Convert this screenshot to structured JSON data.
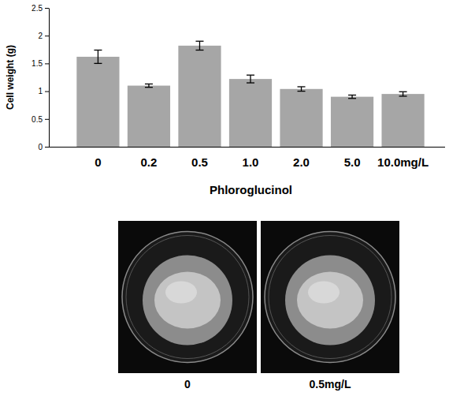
{
  "chart_data": {
    "type": "bar",
    "x_label": "Phloroglucinol",
    "y_label": "Cell weight (g)",
    "categories": [
      "0",
      "0.2",
      "0.5",
      "1.0",
      "2.0",
      "5.0",
      "10.0mg/L"
    ],
    "values": [
      1.62,
      1.1,
      1.82,
      1.22,
      1.04,
      0.9,
      0.95
    ],
    "errors": [
      0.12,
      0.03,
      0.08,
      0.07,
      0.04,
      0.03,
      0.04
    ],
    "color": "#a6a6a6",
    "ylim": [
      0,
      2.5
    ],
    "yticks": [
      0,
      0.5,
      1,
      1.5,
      2,
      2.5
    ],
    "grid": false,
    "annotations": [
      "0",
      "0.5mg/L"
    ]
  }
}
